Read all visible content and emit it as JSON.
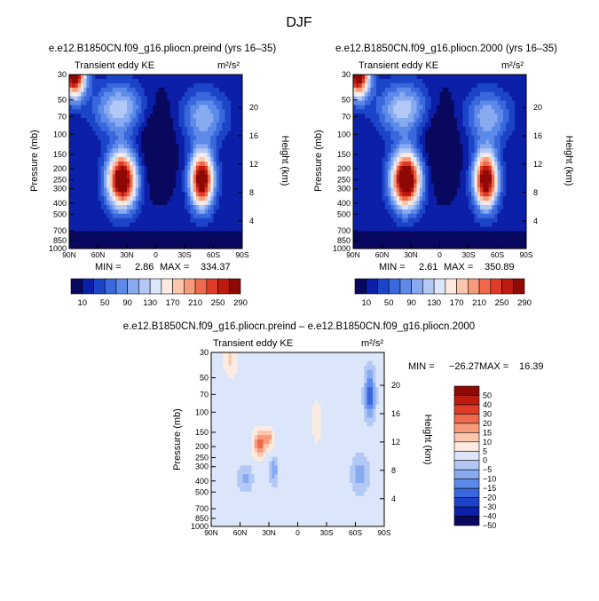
{
  "figure": {
    "title": "DJF"
  },
  "colors": {
    "abs_levels": [
      "#08085e",
      "#0b1fa8",
      "#1c44c9",
      "#3a68dc",
      "#5d8ae9",
      "#87aaf0",
      "#b3c8f5",
      "#dbe6fb",
      "#fdebe1",
      "#fbc6ab",
      "#f79a7a",
      "#ef6a4c",
      "#de3c28",
      "#bd1b10",
      "#8e0904"
    ],
    "diff_levels": [
      "#08085e",
      "#0b1fa8",
      "#1c44c9",
      "#3a68dc",
      "#5d8ae9",
      "#87aaf0",
      "#b3c8f5",
      "#dbe6fb",
      "#fdebe1",
      "#fbc6ab",
      "#f79a7a",
      "#ef6a4c",
      "#de3c28",
      "#bd1b10",
      "#8e0904"
    ]
  },
  "chart_data": [
    {
      "type": "heatmap",
      "title": "e.e12.B1850CN.f09_g16.pliocn.preind (yrs 16–35)",
      "subtitle_left": "Transient eddy KE",
      "units_label": "m²/s²",
      "ylabel": "Pressure (mb)",
      "ylabel_right": "Height (km)",
      "xticks": [
        "90N",
        "60N",
        "30N",
        "0",
        "30S",
        "60S",
        "90S"
      ],
      "yticks": [
        "30",
        "50",
        "70",
        "100",
        "150",
        "200",
        "250",
        "300",
        "400",
        "500",
        "700",
        "850",
        "1000"
      ],
      "yticks_right": [
        "20",
        "16",
        "12",
        "8",
        "4"
      ],
      "stats": {
        "min_label": "MIN =",
        "min": "2.86",
        "max_label": "MAX =",
        "max": "334.37"
      },
      "features": [
        {
          "lat": 35,
          "p": 250,
          "value": 334.37
        },
        {
          "lat": -48,
          "p": 250,
          "value": 320
        },
        {
          "lat": 85,
          "p": 30,
          "value": 300
        }
      ],
      "colorbar_labels": [
        "10",
        "50",
        "90",
        "130",
        "170",
        "210",
        "250",
        "290"
      ]
    },
    {
      "type": "heatmap",
      "title": "e.e12.B1850CN.f09_g16.pliocn.2000 (yrs 16–35)",
      "subtitle_left": "Transient eddy KE",
      "units_label": "m²/s²",
      "ylabel": "Pressure (mb)",
      "ylabel_right": "Height (km)",
      "xticks": [
        "90N",
        "60N",
        "30N",
        "0",
        "30S",
        "60S",
        "90S"
      ],
      "yticks": [
        "30",
        "50",
        "70",
        "100",
        "150",
        "200",
        "250",
        "300",
        "400",
        "500",
        "700",
        "850",
        "1000"
      ],
      "yticks_right": [
        "20",
        "16",
        "12",
        "8",
        "4"
      ],
      "stats": {
        "min_label": "MIN =",
        "min": "2.61",
        "max_label": "MAX =",
        "max": "350.89"
      },
      "features": [
        {
          "lat": 35,
          "p": 250,
          "value": 350.89
        },
        {
          "lat": -48,
          "p": 250,
          "value": 325
        },
        {
          "lat": 85,
          "p": 30,
          "value": 300
        }
      ],
      "colorbar_labels": [
        "10",
        "50",
        "90",
        "130",
        "170",
        "210",
        "250",
        "290"
      ]
    },
    {
      "type": "heatmap",
      "title": "e.e12.B1850CN.f09_g16.pliocn.preind – e.e12.B1850CN.f09_g16.pliocn.2000",
      "subtitle_left": "Transient eddy KE",
      "units_label": "m²/s²",
      "ylabel": "Pressure (mb)",
      "ylabel_right": "Height (km)",
      "xticks": [
        "90N",
        "60N",
        "30N",
        "0",
        "30S",
        "60S",
        "90S"
      ],
      "yticks": [
        "30",
        "50",
        "70",
        "100",
        "150",
        "200",
        "250",
        "300",
        "400",
        "500",
        "700",
        "850",
        "1000"
      ],
      "yticks_right": [
        "20",
        "16",
        "12",
        "8",
        "4"
      ],
      "stats": {
        "min_label": "MIN =",
        "min": "−26.27",
        "max_label": "MAX =",
        "max": "16.39"
      },
      "colorbar_labels": [
        "50",
        "40",
        "30",
        "20",
        "15",
        "10",
        "5",
        "0",
        "−5",
        "−10",
        "−15",
        "−20",
        "−30",
        "−40",
        "−50"
      ]
    }
  ]
}
